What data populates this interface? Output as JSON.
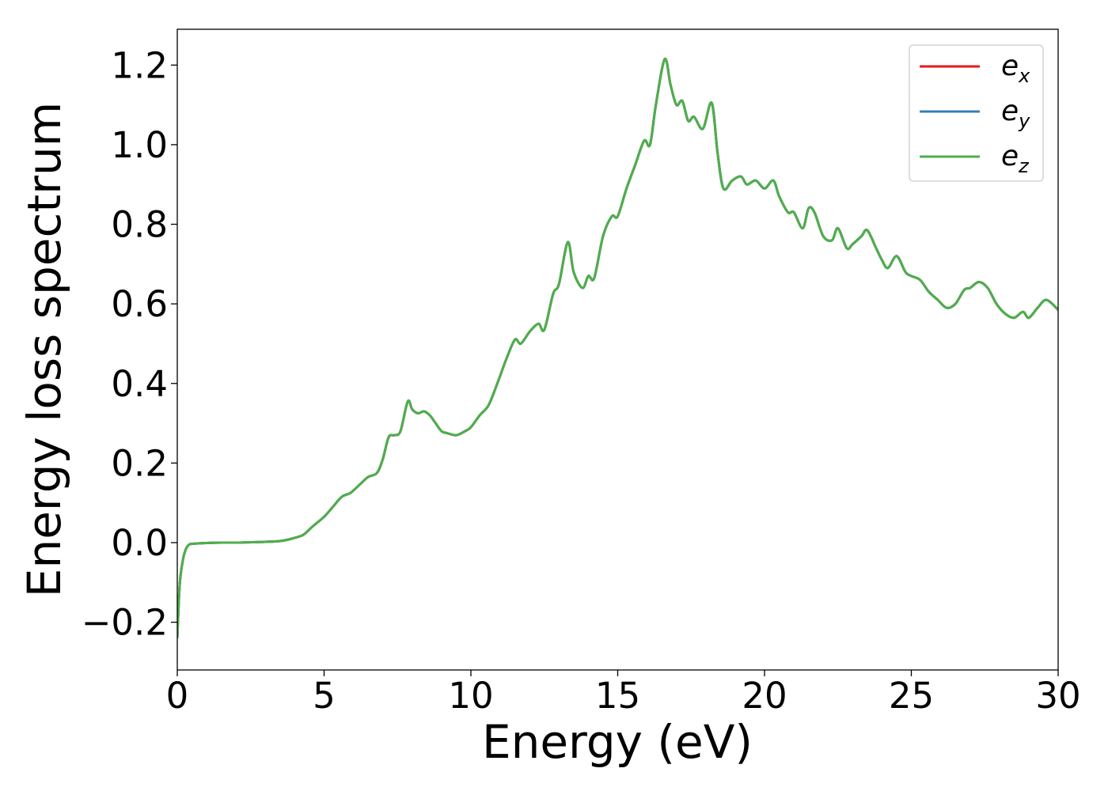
{
  "chart_data": {
    "type": "line",
    "title": "",
    "xlabel": "Energy (eV)",
    "ylabel": "Energy loss spectrum",
    "xlim": [
      0,
      30
    ],
    "ylim": [
      -0.32,
      1.29
    ],
    "xticks": [
      0,
      5,
      10,
      15,
      20,
      25,
      30
    ],
    "xtick_labels": [
      "0",
      "5",
      "10",
      "15",
      "20",
      "25",
      "30"
    ],
    "yticks": [
      -0.2,
      0.0,
      0.2,
      0.4,
      0.6,
      0.8,
      1.0,
      1.2
    ],
    "ytick_labels": [
      "−0.2",
      "0.0",
      "0.2",
      "0.4",
      "0.6",
      "0.8",
      "1.0",
      "1.2"
    ],
    "grid": false,
    "legend_position": "top-right",
    "series": [
      {
        "name": "e_x",
        "label_base": "e",
        "label_sub": "x",
        "color": "#e41a1c"
      },
      {
        "name": "e_y",
        "label_base": "e",
        "label_sub": "y",
        "color": "#377eb8"
      },
      {
        "name": "e_z",
        "label_base": "e",
        "label_sub": "z",
        "color": "#4daf4a"
      }
    ],
    "shared_curve": {
      "x": [
        0.0,
        0.05,
        0.1,
        0.2,
        0.3,
        0.4,
        0.5,
        0.7,
        1.0,
        1.5,
        2.0,
        2.5,
        3.0,
        3.5,
        3.8,
        4.0,
        4.3,
        4.6,
        5.0,
        5.3,
        5.6,
        5.9,
        6.2,
        6.5,
        6.8,
        7.0,
        7.2,
        7.4,
        7.6,
        7.85,
        8.0,
        8.2,
        8.4,
        8.6,
        8.8,
        9.0,
        9.2,
        9.5,
        9.8,
        10.0,
        10.3,
        10.6,
        10.9,
        11.2,
        11.5,
        11.7,
        12.0,
        12.3,
        12.5,
        12.8,
        13.0,
        13.3,
        13.5,
        13.8,
        14.0,
        14.2,
        14.5,
        14.8,
        15.0,
        15.3,
        15.6,
        15.9,
        16.1,
        16.3,
        16.6,
        16.8,
        17.0,
        17.2,
        17.4,
        17.6,
        17.9,
        18.2,
        18.4,
        18.6,
        18.9,
        19.2,
        19.4,
        19.7,
        20.0,
        20.3,
        20.5,
        20.8,
        21.0,
        21.3,
        21.5,
        21.7,
        22.0,
        22.3,
        22.5,
        22.8,
        23.0,
        23.3,
        23.5,
        23.8,
        24.0,
        24.2,
        24.5,
        24.8,
        25.0,
        25.3,
        25.6,
        25.9,
        26.2,
        26.5,
        26.8,
        27.0,
        27.3,
        27.6,
        27.9,
        28.2,
        28.5,
        28.8,
        29.0,
        29.3,
        29.6,
        30.0
      ],
      "y": [
        -0.24,
        -0.15,
        -0.09,
        -0.04,
        -0.015,
        -0.005,
        -0.003,
        -0.002,
        -0.001,
        0.0,
        0.0,
        0.001,
        0.002,
        0.004,
        0.008,
        0.012,
        0.02,
        0.04,
        0.065,
        0.09,
        0.115,
        0.125,
        0.145,
        0.165,
        0.175,
        0.21,
        0.265,
        0.27,
        0.28,
        0.355,
        0.335,
        0.325,
        0.33,
        0.32,
        0.3,
        0.28,
        0.275,
        0.27,
        0.28,
        0.29,
        0.32,
        0.345,
        0.4,
        0.46,
        0.51,
        0.5,
        0.53,
        0.55,
        0.535,
        0.625,
        0.65,
        0.755,
        0.68,
        0.64,
        0.67,
        0.665,
        0.77,
        0.82,
        0.82,
        0.89,
        0.95,
        1.01,
        1.0,
        1.1,
        1.215,
        1.15,
        1.1,
        1.11,
        1.06,
        1.07,
        1.04,
        1.105,
        0.98,
        0.89,
        0.91,
        0.92,
        0.9,
        0.91,
        0.89,
        0.91,
        0.87,
        0.83,
        0.83,
        0.79,
        0.84,
        0.83,
        0.77,
        0.76,
        0.79,
        0.74,
        0.75,
        0.77,
        0.785,
        0.74,
        0.71,
        0.69,
        0.72,
        0.68,
        0.67,
        0.66,
        0.63,
        0.61,
        0.59,
        0.6,
        0.635,
        0.64,
        0.655,
        0.64,
        0.6,
        0.575,
        0.565,
        0.58,
        0.565,
        0.59,
        0.61,
        0.585
      ]
    }
  }
}
